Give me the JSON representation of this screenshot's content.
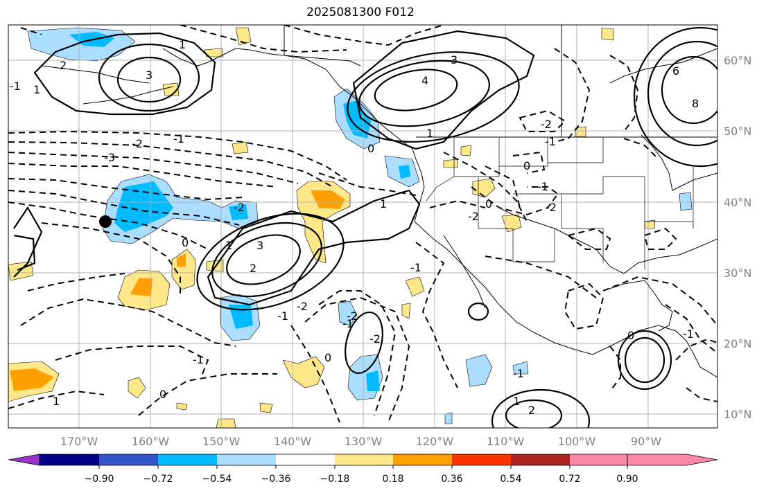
{
  "title": "2025081300 F012",
  "longitude_labels": [
    "170°W",
    "160°W",
    "150°W",
    "140°W",
    "130°W",
    "120°W",
    "110°W",
    "100°W",
    "90°W"
  ],
  "latitude_labels": [
    "60°N",
    "50°N",
    "40°N",
    "30°N",
    "20°N",
    "10°N"
  ],
  "colorbar": {
    "tick_labels": [
      "−0.90",
      "−0.72",
      "−0.54",
      "−0.36",
      "−0.18",
      "0.18",
      "0.36",
      "0.54",
      "0.72",
      "0.90"
    ],
    "colors": [
      "#9933cc",
      "#000088",
      "#3355cc",
      "#00bbff",
      "#aaddff",
      "#ffffff",
      "#ffe88a",
      "#ffa000",
      "#ff3300",
      "#aa2222",
      "#ff88aa"
    ]
  },
  "contour_labels": [
    "3",
    "2",
    "1",
    "0",
    "-1",
    "-2",
    "-3",
    "4",
    "3",
    "1",
    "0",
    "-1",
    "-2",
    "3",
    "2",
    "1",
    "-1",
    "-2",
    "-2",
    "-2",
    "-1",
    "0",
    "0",
    "1",
    "6",
    "8",
    "-1",
    "-2",
    "0",
    "-1",
    "0",
    "-2",
    "-2",
    "1",
    "-1",
    "2",
    "1",
    "-1",
    "0",
    "-1",
    "-1",
    "1"
  ]
}
